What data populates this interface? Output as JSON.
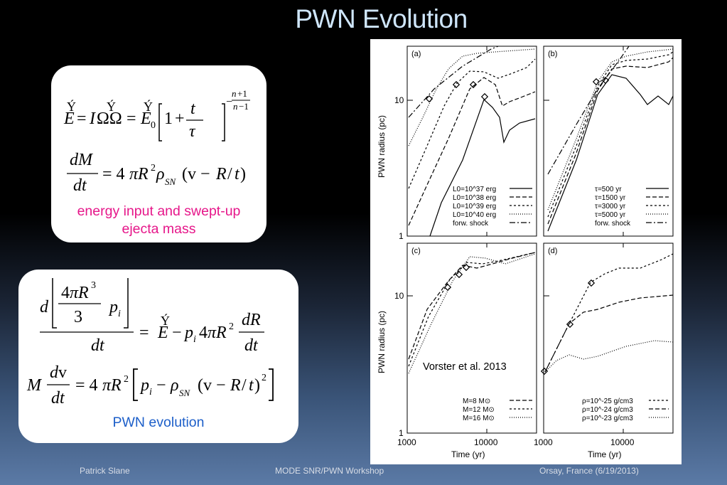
{
  "slide": {
    "title": "PWN Evolution"
  },
  "box1": {
    "caption_line1": "energy input and swept-up",
    "caption_line2": "ejecta mass"
  },
  "box2": {
    "caption": "PWN evolution"
  },
  "figure": {
    "overlay_text": "Vorster et al. 2013",
    "panels": {
      "a": {
        "label": "(a)",
        "legend": [
          "L0=10^37 erg",
          "L0=10^38 erg",
          "L0=10^39 erg",
          "L0=10^40 erg",
          "forw. shock"
        ]
      },
      "b": {
        "label": "(b)",
        "legend": [
          "τ=500 yr",
          "τ=1500 yr",
          "τ=3000 yr",
          "τ=5000 yr",
          "forw. shock"
        ]
      },
      "c": {
        "label": "(c)",
        "legend": [
          "M=8 M⊙",
          "M=12 M⊙",
          "M=16 M⊙"
        ]
      },
      "d": {
        "label": "(d)",
        "legend": [
          "ρ=10^-25 g/cm3",
          "ρ=10^-24 g/cm3",
          "ρ=10^-23 g/cm3"
        ]
      }
    },
    "ylabel": "PWN radius (pc)",
    "xlabel": "Time (yr)",
    "yticks": [
      "1",
      "10"
    ],
    "xticks": [
      "1000",
      "10000"
    ]
  },
  "footer": {
    "author": "Patrick Slane",
    "event": "MODE SNR/PWN Workshop",
    "place_date": "Orsay, France  (6/19/2013)"
  }
}
